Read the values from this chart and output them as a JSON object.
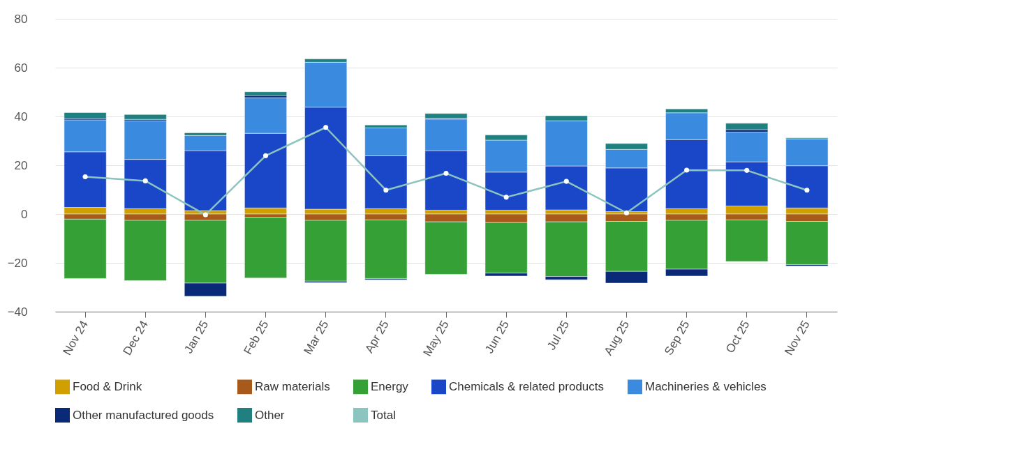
{
  "chart_data": {
    "type": "bar",
    "stacked": true,
    "categories": [
      "Nov 24",
      "Dec 24",
      "Jan 25",
      "Feb 25",
      "Mar 25",
      "Apr 25",
      "May 25",
      "Jun 25",
      "Jul 25",
      "Aug 25",
      "Sep 25",
      "Oct 25",
      "Nov 25"
    ],
    "series": [
      {
        "name": "Food & Drink",
        "color": "#cfa000",
        "values": [
          2.7,
          2.2,
          1.4,
          2.5,
          2.0,
          2.2,
          1.6,
          1.6,
          1.7,
          1.0,
          2.2,
          3.3,
          2.5
        ]
      },
      {
        "name": "Raw materials",
        "color": "#a85a1a",
        "values": [
          -2.1,
          -2.6,
          -2.6,
          -1.3,
          -2.6,
          -2.4,
          -3.2,
          -3.5,
          -3.2,
          -3.0,
          -2.6,
          -2.4,
          -3.0
        ]
      },
      {
        "name": "Energy",
        "color": "#35a035",
        "values": [
          -24.3,
          -24.7,
          -25.7,
          -24.9,
          -24.9,
          -24.0,
          -21.5,
          -20.7,
          -22.4,
          -20.5,
          -20.0,
          -17.0,
          -17.7
        ]
      },
      {
        "name": "Chemicals & related products",
        "color": "#1a47c8",
        "values": [
          22.8,
          20.2,
          24.6,
          30.6,
          41.8,
          21.7,
          24.4,
          15.6,
          18.0,
          17.9,
          28.3,
          18.1,
          17.3
        ]
      },
      {
        "name": "Machineries & vehicles",
        "color": "#3a8be0",
        "values": [
          13.1,
          15.8,
          6.2,
          14.6,
          18.4,
          11.4,
          12.9,
          13.1,
          18.5,
          7.6,
          11.0,
          12.2,
          11.0
        ]
      },
      {
        "name": "Other manufactured goods",
        "color": "#0a2a78",
        "values": [
          0.6,
          0.6,
          -5.4,
          0.9,
          -0.6,
          -0.5,
          0.4,
          -1.2,
          -1.3,
          -4.8,
          -2.8,
          1.0,
          -0.6
        ]
      },
      {
        "name": "Other",
        "color": "#208080",
        "values": [
          2.4,
          2.0,
          1.1,
          1.5,
          1.4,
          1.2,
          1.9,
          2.1,
          2.1,
          2.4,
          1.6,
          2.6,
          0.4
        ]
      },
      {
        "name": "Total",
        "type": "line",
        "color": "#8cc4c0",
        "marker": "circle",
        "values": [
          15.3,
          13.6,
          -0.3,
          23.9,
          35.5,
          9.8,
          16.7,
          6.9,
          13.4,
          0.5,
          18.0,
          17.9,
          9.8
        ]
      }
    ],
    "ylim": [
      -40,
      80
    ],
    "yticks": [
      -40,
      -20,
      0,
      20,
      40,
      60,
      80
    ],
    "grid": "y",
    "legend": "bottom"
  }
}
